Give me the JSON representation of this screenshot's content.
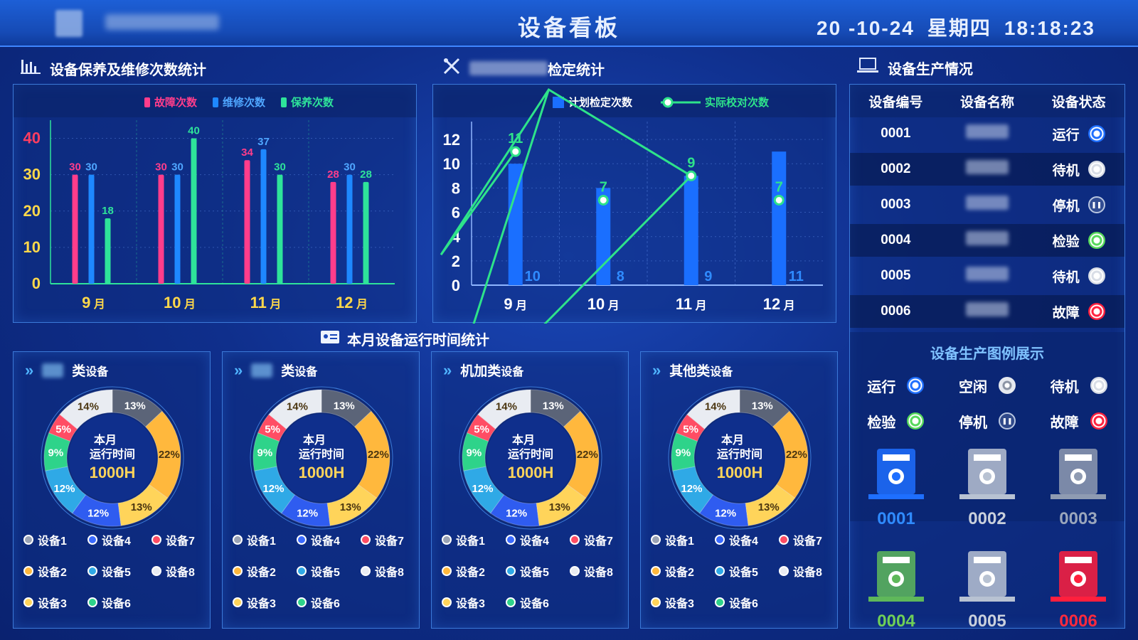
{
  "header": {
    "title": "设备看板",
    "date": "20  -10-24",
    "weekday": "星期四",
    "time": "18:18:23"
  },
  "sections": {
    "maintenance_title": "设备保养及维修次数统计",
    "calibration_title": "检定统计",
    "production_title": "设备生产情况",
    "runtime_title": "本月设备运行时间统计"
  },
  "maintenance_legend": [
    "故障次数",
    "维修次数",
    "保养次数"
  ],
  "calibration_legend": [
    "计划检定次数",
    "实际校对次数"
  ],
  "colors": {
    "fault": "#ff3d8b",
    "repair": "#1e88ff",
    "maint": "#2ee39a",
    "plan": "#1a6fff",
    "actual": "#2ee38a",
    "run": "#1e88ff",
    "idle": "#c8d0dc",
    "standby": "#d8dde6",
    "check": "#55d85a",
    "stop": "#b9c6e0",
    "error": "#ff1f3d"
  },
  "chart_data": [
    {
      "type": "bar",
      "categories": [
        "9月",
        "10月",
        "11月",
        "12月"
      ],
      "series": [
        {
          "name": "故障次数",
          "values": [
            30,
            30,
            34,
            28
          ]
        },
        {
          "name": "维修次数",
          "values": [
            30,
            30,
            37,
            30
          ]
        },
        {
          "name": "保养次数",
          "values": [
            18,
            40,
            30,
            28
          ]
        }
      ],
      "yticks": [
        "0",
        "10",
        "20",
        "30",
        "40"
      ],
      "ylim": [
        0,
        45
      ]
    },
    {
      "type": "bar+line",
      "categories": [
        "9月",
        "10月",
        "11月",
        "12月"
      ],
      "series": [
        {
          "name": "计划检定次数",
          "values": [
            10,
            8,
            9,
            11
          ]
        },
        {
          "name": "实际校对次数",
          "values": [
            11,
            7,
            9,
            7
          ]
        }
      ],
      "yticks": [
        "0",
        "2",
        "4",
        "6",
        "8",
        "10",
        "12"
      ],
      "ylim": [
        0,
        13
      ]
    }
  ],
  "table": {
    "headers": [
      "设备编号",
      "设备名称",
      "设备状态"
    ],
    "rows": [
      {
        "id": "0001",
        "status": "运行",
        "kind": "run"
      },
      {
        "id": "0002",
        "status": "待机",
        "kind": "standby"
      },
      {
        "id": "0003",
        "status": "停机",
        "kind": "stop"
      },
      {
        "id": "0004",
        "status": "检验",
        "kind": "check"
      },
      {
        "id": "0005",
        "status": "待机",
        "kind": "standby"
      },
      {
        "id": "0006",
        "status": "故障",
        "kind": "error"
      }
    ]
  },
  "legend_panel": {
    "title": "设备生产图例展示",
    "items": [
      {
        "label": "运行",
        "kind": "run"
      },
      {
        "label": "空闲",
        "kind": "idle"
      },
      {
        "label": "待机",
        "kind": "standby"
      },
      {
        "label": "检验",
        "kind": "check"
      },
      {
        "label": "停机",
        "kind": "stop"
      },
      {
        "label": "故障",
        "kind": "error"
      }
    ]
  },
  "devices": [
    {
      "id": "0001",
      "kind": "run"
    },
    {
      "id": "0002",
      "kind": "standby"
    },
    {
      "id": "0003",
      "kind": "stop"
    },
    {
      "id": "0004",
      "kind": "check"
    },
    {
      "id": "0005",
      "kind": "standby"
    },
    {
      "id": "0006",
      "kind": "error"
    }
  ],
  "donuts": {
    "panels": [
      {
        "title": "类设备"
      },
      {
        "title": "类设备"
      },
      {
        "title": "机加类设备"
      },
      {
        "title": "其他类设备"
      }
    ],
    "center_label1": "本月",
    "center_label2": "运行时间",
    "center_value": "1000H",
    "slices": [
      {
        "label": "13%",
        "value": 13,
        "color": "#5b6478"
      },
      {
        "label": "22%",
        "value": 22,
        "color": "#ffb83d"
      },
      {
        "label": "13%",
        "value": 13,
        "color": "#ffd45a"
      },
      {
        "label": "12%",
        "value": 12,
        "color": "#2f5cf0"
      },
      {
        "label": "12%",
        "value": 12,
        "color": "#2fa9e6"
      },
      {
        "label": "9%",
        "value": 9,
        "color": "#2ed38a"
      },
      {
        "label": "5%",
        "value": 5,
        "color": "#ff4d64"
      },
      {
        "label": "14%",
        "value": 14,
        "color": "#e9ecf2"
      }
    ],
    "legend": [
      {
        "label": "设备1",
        "color": "#9aa3b5"
      },
      {
        "label": "设备4",
        "color": "#3b6bff"
      },
      {
        "label": "设备7",
        "color": "#ff4d64"
      },
      {
        "label": "设备2",
        "color": "#ffb83d"
      },
      {
        "label": "设备5",
        "color": "#2fa9e6"
      },
      {
        "label": "设备8",
        "color": "#e9ecf2"
      },
      {
        "label": "设备3",
        "color": "#ffd45a"
      },
      {
        "label": "设备6",
        "color": "#2ed38a"
      }
    ]
  }
}
